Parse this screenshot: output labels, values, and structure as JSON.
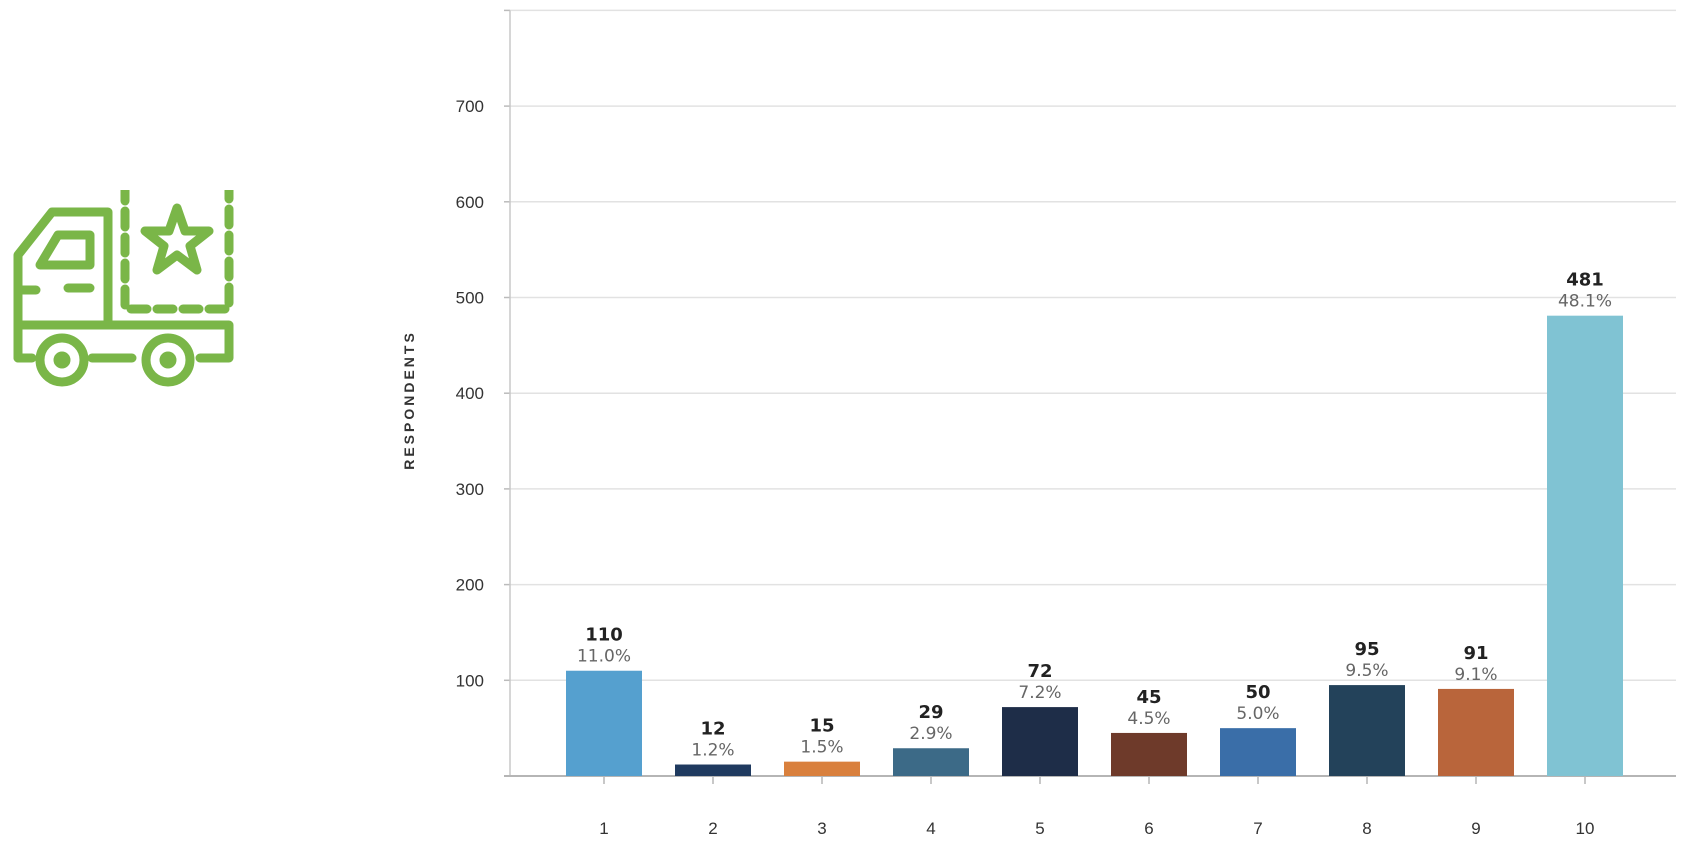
{
  "icon": {
    "name": "delivery-truck-star-icon",
    "color": "#7ab648"
  },
  "chart_data": {
    "type": "bar",
    "ylabel": "RESPONDENTS",
    "xlabel": "",
    "title": "",
    "ylim": [
      0,
      800
    ],
    "yticks": [
      100,
      200,
      300,
      400,
      500,
      600,
      700
    ],
    "grid": true,
    "categories": [
      "1",
      "2",
      "3",
      "4",
      "5",
      "6",
      "7",
      "8",
      "9",
      "10"
    ],
    "values": [
      110,
      12,
      15,
      29,
      72,
      45,
      50,
      95,
      91,
      481
    ],
    "percent_labels": [
      "11.0%",
      "1.2%",
      "1.5%",
      "2.9%",
      "7.2%",
      "4.5%",
      "5.0%",
      "9.5%",
      "9.1%",
      "48.1%"
    ],
    "colors": [
      "#55a0cf",
      "#1f3a5f",
      "#d9803d",
      "#3c6a87",
      "#1e2d48",
      "#6e3a2a",
      "#3a6ea8",
      "#23425a",
      "#b9653b",
      "#80c3d3"
    ]
  }
}
